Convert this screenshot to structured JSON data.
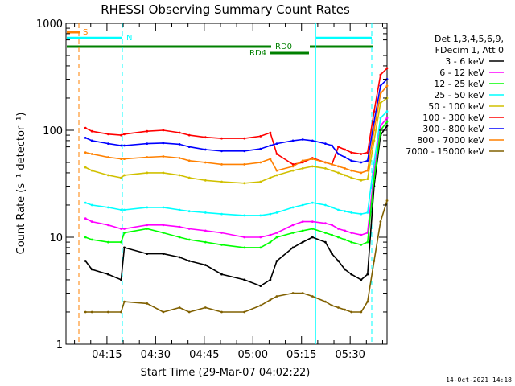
{
  "chart_data": {
    "type": "line",
    "title": "RHESSI Observing Summary Count Rates",
    "xlabel": "Start Time (29-Mar-07 04:02:22)",
    "ylabel": "Count Rate (s⁻¹ detector⁻¹)",
    "y_scale": "log",
    "ylim": [
      1,
      1000
    ],
    "xlim_minutes": [
      0,
      99
    ],
    "x_ticks": [
      "04:15",
      "04:30",
      "04:45",
      "05:00",
      "05:15",
      "05:30"
    ],
    "y_ticks": [
      "1",
      "10",
      "100",
      "1000"
    ],
    "legend_header": [
      "Det 1,3,4,5,6,9,",
      "FDecim 1, Att 0"
    ],
    "legend_position": "right",
    "series": [
      {
        "name": "3 - 6 keV",
        "color": "#000000",
        "x": [
          6,
          8,
          13,
          17,
          18,
          25,
          30,
          35,
          38,
          43,
          48,
          55,
          60,
          63,
          65,
          70,
          73,
          76,
          80,
          82,
          84,
          86,
          88,
          91,
          93,
          95,
          97,
          99
        ],
        "y": [
          6,
          5,
          4.5,
          4,
          8,
          7,
          7,
          6.5,
          6,
          5.5,
          4.5,
          4,
          3.5,
          4,
          6,
          8,
          9,
          10,
          9,
          7,
          6,
          5,
          4.5,
          4,
          4.5,
          30,
          90,
          110
        ]
      },
      {
        "name": "6 - 12 keV",
        "color": "#ff00ff",
        "x": [
          6,
          8,
          13,
          17,
          18,
          25,
          30,
          35,
          38,
          43,
          48,
          55,
          60,
          63,
          65,
          70,
          73,
          76,
          80,
          82,
          84,
          86,
          88,
          91,
          93,
          95,
          97,
          99
        ],
        "y": [
          15,
          14,
          13,
          12,
          12,
          13,
          13,
          12.5,
          12,
          11.5,
          11,
          10,
          10,
          10.5,
          11,
          13,
          14,
          14,
          13.5,
          13,
          12,
          11.5,
          11,
          10.5,
          11,
          40,
          110,
          130
        ]
      },
      {
        "name": "12 - 25 keV",
        "color": "#00ff00",
        "x": [
          6,
          8,
          13,
          17,
          18,
          25,
          30,
          35,
          38,
          43,
          48,
          55,
          60,
          63,
          65,
          70,
          73,
          76,
          80,
          82,
          84,
          86,
          88,
          91,
          93,
          95,
          97,
          99
        ],
        "y": [
          10,
          9.5,
          9,
          9,
          11,
          12,
          11,
          10,
          9.5,
          9,
          8.5,
          8,
          8,
          9,
          10,
          11,
          11.5,
          12,
          11,
          10.5,
          10,
          9.5,
          9,
          8.5,
          9,
          35,
          100,
          120
        ]
      },
      {
        "name": "25 - 50 keV",
        "color": "#00ffff",
        "x": [
          6,
          8,
          13,
          17,
          18,
          25,
          30,
          35,
          38,
          43,
          48,
          55,
          60,
          63,
          65,
          70,
          73,
          76,
          80,
          82,
          84,
          86,
          88,
          91,
          93,
          95,
          97,
          99
        ],
        "y": [
          21,
          20,
          19,
          18,
          18,
          19,
          19,
          18,
          17.5,
          17,
          16.5,
          16,
          16,
          16.5,
          17,
          19,
          20,
          21,
          20,
          19,
          18,
          17.5,
          17,
          16.5,
          17,
          50,
          130,
          150
        ]
      },
      {
        "name": "50 - 100 keV",
        "color": "#d0c000",
        "x": [
          6,
          8,
          13,
          17,
          18,
          25,
          30,
          35,
          38,
          43,
          48,
          55,
          60,
          63,
          65,
          70,
          73,
          76,
          80,
          82,
          84,
          86,
          88,
          91,
          93,
          95,
          97,
          99
        ],
        "y": [
          45,
          42,
          38,
          36,
          38,
          40,
          40,
          38,
          36,
          34,
          33,
          32,
          33,
          36,
          38,
          42,
          44,
          46,
          44,
          42,
          40,
          38,
          36,
          34,
          35,
          80,
          180,
          200
        ]
      },
      {
        "name": "100 - 300 keV",
        "color": "#ff0000",
        "x": [
          6,
          8,
          13,
          17,
          18,
          25,
          30,
          35,
          38,
          43,
          48,
          55,
          60,
          63,
          65,
          70,
          73,
          76,
          80,
          82,
          84,
          86,
          88,
          91,
          93,
          95,
          97,
          99
        ],
        "y": [
          105,
          98,
          92,
          90,
          92,
          98,
          100,
          95,
          90,
          86,
          84,
          84,
          88,
          95,
          60,
          48,
          50,
          55,
          50,
          48,
          70,
          66,
          62,
          60,
          62,
          150,
          330,
          380
        ]
      },
      {
        "name": "300 - 800 keV",
        "color": "#0000ff",
        "x": [
          6,
          8,
          13,
          17,
          18,
          25,
          30,
          35,
          38,
          43,
          48,
          55,
          60,
          63,
          65,
          70,
          73,
          76,
          80,
          82,
          84,
          86,
          88,
          91,
          93,
          95,
          97,
          99
        ],
        "y": [
          85,
          80,
          75,
          72,
          72,
          75,
          76,
          74,
          70,
          66,
          64,
          64,
          67,
          72,
          75,
          80,
          82,
          80,
          75,
          72,
          60,
          56,
          52,
          50,
          52,
          120,
          260,
          300
        ]
      },
      {
        "name": "800 - 7000 keV",
        "color": "#ff8000",
        "x": [
          6,
          8,
          13,
          17,
          18,
          25,
          30,
          35,
          38,
          43,
          48,
          55,
          60,
          63,
          65,
          70,
          73,
          76,
          80,
          82,
          84,
          86,
          88,
          91,
          93,
          95,
          97,
          99
        ],
        "y": [
          62,
          60,
          56,
          54,
          54,
          56,
          57,
          55,
          52,
          50,
          48,
          48,
          50,
          54,
          42,
          46,
          52,
          54,
          50,
          48,
          46,
          44,
          42,
          40,
          42,
          100,
          220,
          260
        ]
      },
      {
        "name": "7000 - 15000 keV",
        "color": "#806000",
        "x": [
          6,
          8,
          13,
          17,
          18,
          25,
          30,
          35,
          38,
          43,
          48,
          55,
          60,
          63,
          65,
          70,
          73,
          76,
          80,
          82,
          84,
          86,
          88,
          91,
          93,
          95,
          97,
          99
        ],
        "y": [
          2,
          2,
          2,
          2,
          2.5,
          2.4,
          2,
          2.2,
          2,
          2.2,
          2,
          2,
          2.3,
          2.6,
          2.8,
          3,
          3,
          2.8,
          2.5,
          2.3,
          2.2,
          2.1,
          2,
          2,
          2.5,
          6,
          14,
          22
        ]
      }
    ],
    "annotations": {
      "flags": [
        {
          "label": "S",
          "color": "#ff8000"
        },
        {
          "label": "N",
          "color": "#00ffff"
        },
        {
          "label": "RD0",
          "color": "#008000"
        },
        {
          "label": "RD4",
          "color": "#008000"
        }
      ]
    },
    "grid": false
  },
  "footer": {
    "timestamp": "14-Oct-2021 14:18"
  }
}
